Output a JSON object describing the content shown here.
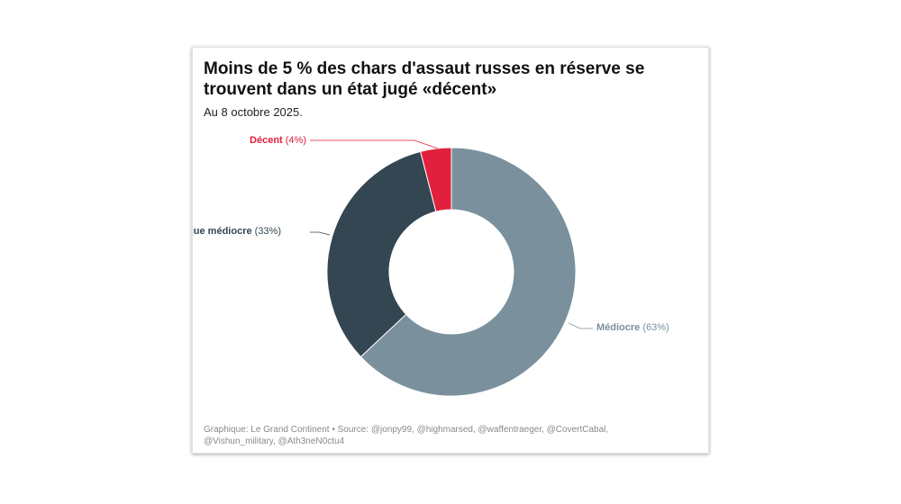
{
  "title": "Moins de 5 % des chars d'assaut russes en réserve se trouvent dans un état jugé «décent»",
  "subtitle": "Au 8 octobre 2025.",
  "footer": "Graphique: Le Grand Continent • Source: @jonpy99, @highmarsed, @waffentraeger, @CovertCabal, @Vishun_military, @Ath3neN0ctu4",
  "colors": {
    "decent": "#e0203c",
    "pire": "#334652",
    "mediocre": "#7a909c"
  },
  "chart_data": {
    "type": "pie",
    "donut": true,
    "slices": [
      {
        "label": "Médiocre",
        "value": 63,
        "pct_text": "(63%)",
        "color": "#7a909c"
      },
      {
        "label": "Pire que médiocre",
        "value": 33,
        "pct_text": "(33%)",
        "color": "#334652"
      },
      {
        "label": "Décent",
        "value": 4,
        "pct_text": "(4%)",
        "color": "#e0203c"
      }
    ]
  }
}
